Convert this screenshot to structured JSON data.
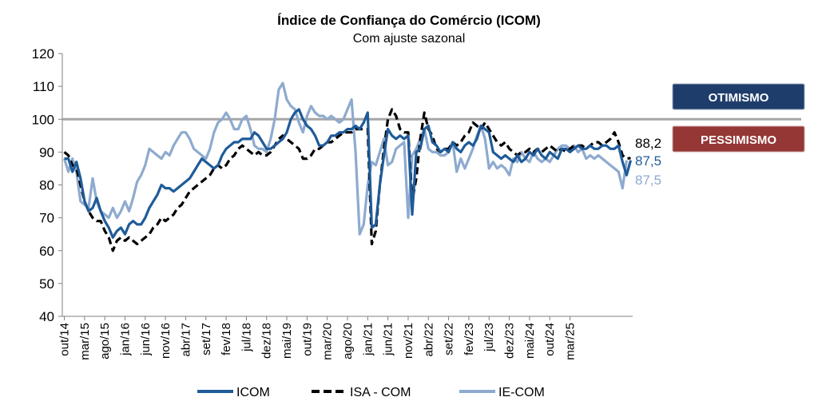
{
  "chart_data": {
    "type": "line",
    "title": "Índice de Confiança do Comércio (ICOM)",
    "subtitle": "Com ajuste sazonal",
    "ylim": [
      40,
      120
    ],
    "yticks": [
      40,
      50,
      60,
      70,
      80,
      90,
      100,
      110,
      120
    ],
    "xticks": [
      "out/14",
      "mar/15",
      "ago/15",
      "jan/16",
      "jun/16",
      "nov/16",
      "abr/17",
      "set/17",
      "fev/18",
      "jul/18",
      "dez/18",
      "mai/19",
      "out/19",
      "mar/20",
      "ago/20",
      "jan/21",
      "jun/21",
      "nov/21",
      "abr/22",
      "set/22",
      "fev/23",
      "jul/23",
      "dez/23",
      "mai/24",
      "out/24",
      "mar/25"
    ],
    "reference_line": 100,
    "grid": false,
    "legend_position": "bottom",
    "badges": [
      {
        "label": "OTIMISMO",
        "color": "#1f3d6b"
      },
      {
        "label": "PESSIMISMO",
        "color": "#953735"
      }
    ],
    "series": [
      {
        "name": "ICOM",
        "color": "#1f5b99",
        "style": "solid",
        "end_label": "87,5",
        "values": [
          88.0,
          88.0,
          84.0,
          87.0,
          82.0,
          75.0,
          72.0,
          73.0,
          76.0,
          72.0,
          69.0,
          67.0,
          64.0,
          66.0,
          67.0,
          65.0,
          68.0,
          69.0,
          68.0,
          68.0,
          70.0,
          73.0,
          75.0,
          77.0,
          80.0,
          79.0,
          79.0,
          78.0,
          79.0,
          80.0,
          81.0,
          82.0,
          84.0,
          86.0,
          88.0,
          87.0,
          86.0,
          85.0,
          86.0,
          89.0,
          91.0,
          92.0,
          93.0,
          93.0,
          94.0,
          94.0,
          94.0,
          96.0,
          95.0,
          93.0,
          91.0,
          91.0,
          92.0,
          93.0,
          94.0,
          96.0,
          100.0,
          102.0,
          103.0,
          100.0,
          98.0,
          97.0,
          95.0,
          92.0,
          92.0,
          93.0,
          95.0,
          95.0,
          96.0,
          96.0,
          97.0,
          97.0,
          98.0,
          97.0,
          99.0,
          102.0,
          67.0,
          68.0,
          80.0,
          89.0,
          97.0,
          95.0,
          94.0,
          95.0,
          94.0,
          95.0,
          71.0,
          90.0,
          91.0,
          97.0,
          98.0,
          93.0,
          92.0,
          90.0,
          91.0,
          90.0,
          93.0,
          91.0,
          90.0,
          92.0,
          93.0,
          92.0,
          94.0,
          98.0,
          97.0,
          96.0,
          90.0,
          89.0,
          88.0,
          89.0,
          88.0,
          87.0,
          89.0,
          87.0,
          88.0,
          90.0,
          89.0,
          91.0,
          89.0,
          88.0,
          90.0,
          89.0,
          88.0,
          91.0,
          91.0,
          90.0,
          91.0,
          92.0,
          91.0,
          91.0,
          92.0,
          91.0,
          91.0,
          92.0,
          92.0,
          91.0,
          91.0,
          92.0,
          87.0,
          83.0,
          87.5
        ]
      },
      {
        "name": "ISA - COM",
        "color": "#000000",
        "style": "dashed",
        "end_label": "88,2",
        "values": [
          90.0,
          89.0,
          86.0,
          85.0,
          80.0,
          75.0,
          72.0,
          70.0,
          69.0,
          69.0,
          66.0,
          64.0,
          60.0,
          63.0,
          64.0,
          63.0,
          64.0,
          63.0,
          62.0,
          63.0,
          64.0,
          65.0,
          67.0,
          68.0,
          70.0,
          69.0,
          70.0,
          71.0,
          73.0,
          74.0,
          76.0,
          78.0,
          79.0,
          80.0,
          81.0,
          82.0,
          83.0,
          85.0,
          86.0,
          85.0,
          86.0,
          88.0,
          89.0,
          91.0,
          92.0,
          91.0,
          90.0,
          89.0,
          90.0,
          89.0,
          89.0,
          90.0,
          92.0,
          94.0,
          95.0,
          94.0,
          93.0,
          92.0,
          91.0,
          88.0,
          88.0,
          89.0,
          91.0,
          91.0,
          92.0,
          93.0,
          93.0,
          94.0,
          95.0,
          96.0,
          96.0,
          96.0,
          97.0,
          97.0,
          97.0,
          97.0,
          62.0,
          66.0,
          80.0,
          91.0,
          100.0,
          103.0,
          101.0,
          97.0,
          96.0,
          96.0,
          75.0,
          82.0,
          94.0,
          102.0,
          97.0,
          95.0,
          91.0,
          90.0,
          91.0,
          91.0,
          93.0,
          92.0,
          93.0,
          95.0,
          96.0,
          99.0,
          98.0,
          97.0,
          99.0,
          97.0,
          95.0,
          93.0,
          92.0,
          93.0,
          91.0,
          90.0,
          89.0,
          90.0,
          90.0,
          91.0,
          90.0,
          91.0,
          90.0,
          91.0,
          92.0,
          91.0,
          90.0,
          91.0,
          90.0,
          91.0,
          92.0,
          92.0,
          92.0,
          91.0,
          92.0,
          93.0,
          93.0,
          92.0,
          93.0,
          94.0,
          96.0,
          93.0,
          89.0,
          88.0,
          88.2
        ]
      },
      {
        "name": "IE-COM",
        "color": "#8eaacf",
        "style": "solid",
        "end_label": "87,5",
        "values": [
          88.0,
          84.0,
          88.0,
          84.0,
          75.0,
          74.0,
          73.0,
          82.0,
          75.0,
          72.0,
          71.0,
          70.0,
          73.0,
          70.0,
          72.0,
          75.0,
          72.0,
          76.0,
          81.0,
          83.0,
          86.0,
          91.0,
          90.0,
          89.0,
          88.0,
          90.0,
          89.0,
          92.0,
          94.0,
          96.0,
          96.0,
          94.0,
          91.0,
          90.0,
          89.0,
          88.0,
          91.0,
          96.0,
          99.0,
          100.0,
          102.0,
          100.0,
          97.0,
          97.0,
          100.0,
          101.0,
          97.0,
          92.0,
          91.0,
          91.0,
          90.0,
          94.0,
          100.0,
          109.0,
          111.0,
          106.0,
          104.0,
          103.0,
          99.0,
          96.0,
          101.0,
          104.0,
          102.0,
          101.0,
          101.0,
          100.0,
          101.0,
          100.0,
          99.0,
          100.0,
          103.0,
          106.0,
          90.0,
          65.0,
          68.0,
          80.0,
          87.0,
          86.0,
          90.0,
          94.0,
          86.0,
          87.0,
          91.0,
          92.0,
          93.0,
          70.0,
          89.0,
          91.0,
          94.0,
          97.0,
          91.0,
          90.0,
          90.0,
          89.0,
          89.0,
          90.0,
          93.0,
          84.0,
          88.0,
          85.0,
          88.0,
          91.0,
          95.0,
          98.0,
          94.0,
          85.0,
          87.0,
          85.0,
          86.0,
          85.0,
          83.0,
          88.0,
          87.0,
          90.0,
          88.0,
          87.0,
          90.0,
          88.0,
          87.0,
          88.0,
          87.0,
          89.0,
          91.0,
          92.0,
          92.0,
          91.0,
          92.0,
          90.0,
          91.0,
          88.0,
          89.0,
          88.0,
          89.0,
          88.0,
          87.0,
          86.0,
          85.0,
          84.0,
          79.0,
          87.5
        ]
      }
    ]
  }
}
